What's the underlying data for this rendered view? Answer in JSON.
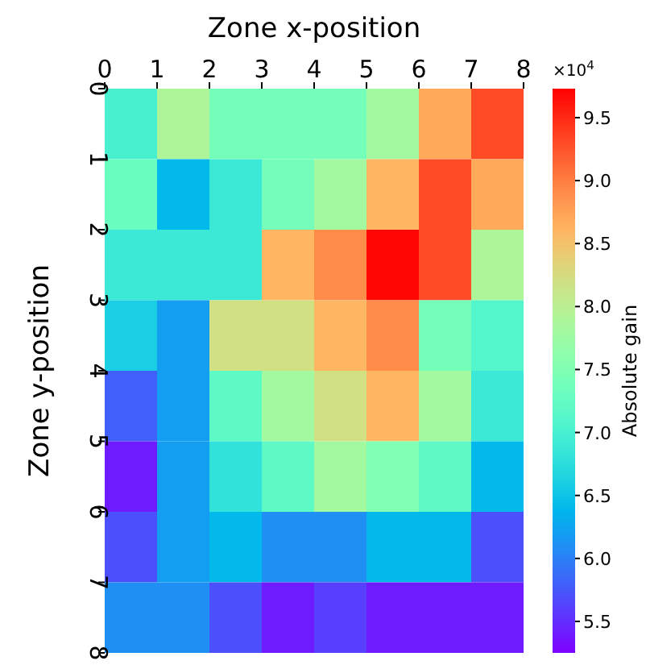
{
  "chart_data": {
    "type": "heatmap",
    "xlabel": "Zone x-position",
    "ylabel": "Zone y-position",
    "clabel": "Absolute gain",
    "xlim": [
      0,
      8
    ],
    "xticks": [
      0,
      1,
      2,
      3,
      4,
      5,
      6,
      7,
      8
    ],
    "ylim": [
      8,
      0
    ],
    "yticks": [
      0,
      1,
      2,
      3,
      4,
      5,
      6,
      7,
      8
    ],
    "clim": [
      5.25,
      9.73
    ],
    "cticks": [
      {
        "value": 5.5,
        "label": "5.5"
      },
      {
        "value": 6,
        "label": "6.0"
      },
      {
        "value": 6.5,
        "label": "6.5"
      },
      {
        "value": 7,
        "label": "7.0"
      },
      {
        "value": 7.5,
        "label": "7.5"
      },
      {
        "value": 8,
        "label": "8.0"
      },
      {
        "value": 8.5,
        "label": "8.5"
      },
      {
        "value": 9,
        "label": "9.0"
      },
      {
        "value": 9.5,
        "label": "9.5"
      }
    ],
    "annotations": [
      "×10$^{4}$"
    ],
    "cells": [
      [
        7.0,
        7.9,
        7.4,
        7.4,
        7.4,
        7.8,
        8.7,
        9.3
      ],
      [
        7.3,
        6.4,
        6.9,
        7.4,
        7.8,
        8.6,
        9.3,
        8.7
      ],
      [
        6.9,
        6.9,
        6.9,
        8.6,
        8.9,
        9.7,
        9.3,
        7.9
      ],
      [
        6.6,
        6.2,
        8.2,
        8.2,
        8.6,
        8.9,
        7.4,
        7.1
      ],
      [
        5.8,
        6.2,
        7.2,
        7.8,
        8.2,
        8.6,
        7.8,
        6.9
      ],
      [
        5.4,
        6.2,
        6.8,
        7.2,
        7.8,
        7.5,
        7.2,
        6.4
      ],
      [
        5.7,
        6.2,
        6.4,
        6.1,
        6.1,
        6.4,
        6.4,
        5.7
      ],
      [
        6.1,
        6.1,
        5.7,
        5.4,
        5.6,
        5.4,
        5.4,
        5.4
      ]
    ]
  }
}
